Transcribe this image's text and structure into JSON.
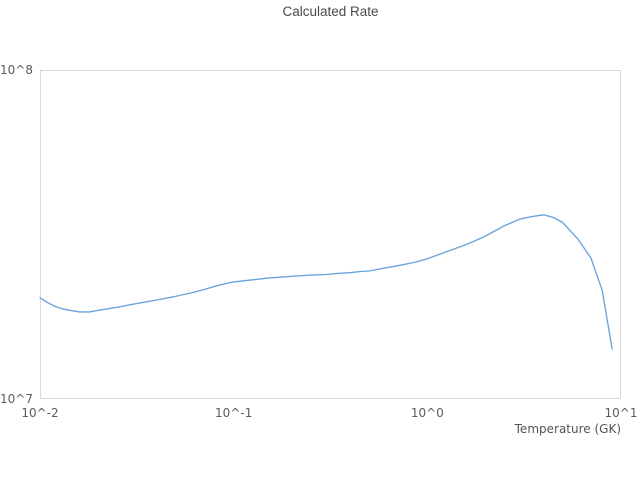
{
  "colors": {
    "line": "#69a3db",
    "plot_border": "#d9d9d9",
    "title_text": "#4a4a4a",
    "tick_text": "#5c5c5c"
  },
  "chart_data": {
    "type": "line",
    "title": "Calculated Rate",
    "xlabel": "Temperature (GK)",
    "ylabel": "",
    "x_scale": "log",
    "y_scale": "log",
    "xlim": [
      0.01,
      10
    ],
    "ylim": [
      10000000.0,
      100000000.0
    ],
    "grid": false,
    "legend": "none",
    "x_tick_values": [
      0.01,
      0.1,
      1,
      10
    ],
    "x_tick_labels": [
      "10^-2",
      "10^-1",
      "10^0",
      "10^1"
    ],
    "y_tick_values": [
      10000000.0,
      100000000.0
    ],
    "y_tick_labels": [
      "10^7",
      "10^8"
    ],
    "series": [
      {
        "name": "Calculated Rate",
        "x": [
          0.01,
          0.011,
          0.012,
          0.013,
          0.015,
          0.016,
          0.018,
          0.02,
          0.025,
          0.03,
          0.04,
          0.05,
          0.06,
          0.07,
          0.08,
          0.09,
          0.1,
          0.15,
          0.2,
          0.25,
          0.3,
          0.35,
          0.4,
          0.45,
          0.5,
          0.6,
          0.7,
          0.8,
          0.9,
          1.0,
          1.25,
          1.5,
          1.75,
          2.0,
          2.5,
          3.0,
          3.5,
          4.0,
          4.5,
          5.0,
          6.0,
          7.0,
          8.0,
          9.0
        ],
        "y": [
          20300000.0,
          19600000.0,
          19100000.0,
          18800000.0,
          18500000.0,
          18400000.0,
          18400000.0,
          18600000.0,
          19000000.0,
          19400000.0,
          20000000.0,
          20500000.0,
          21000000.0,
          21500000.0,
          22000000.0,
          22400000.0,
          22700000.0,
          23300000.0,
          23600000.0,
          23800000.0,
          23900000.0,
          24100000.0,
          24200000.0,
          24400000.0,
          24500000.0,
          25000000.0,
          25400000.0,
          25800000.0,
          26200000.0,
          26700000.0,
          28000000.0,
          29100000.0,
          30200000.0,
          31300000.0,
          33600000.0,
          35200000.0,
          35900000.0,
          36300000.0,
          35600000.0,
          34400000.0,
          30600000.0,
          26800000.0,
          21400000.0,
          14200000.0
        ]
      }
    ]
  }
}
